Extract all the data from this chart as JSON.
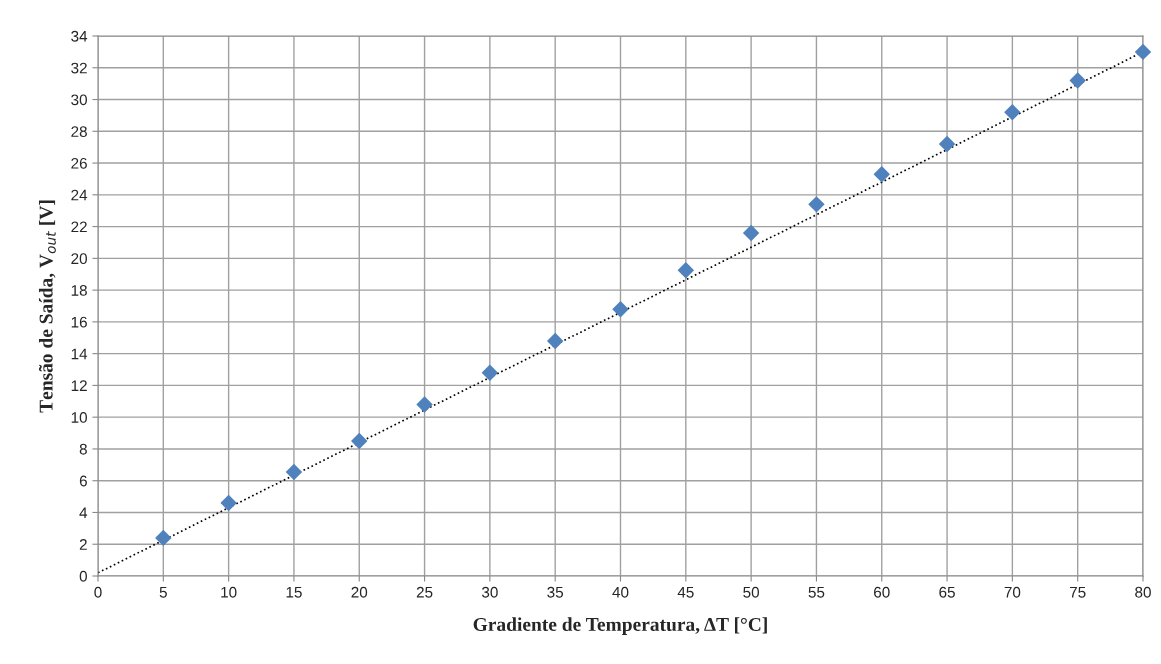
{
  "chart_data": {
    "type": "scatter",
    "xlabel": "Gradiente de Temperatura, ΔT [°C]",
    "ylabel": "Tensão de Saída, V$_{out}$ [V]",
    "x": [
      5,
      10,
      15,
      20,
      25,
      30,
      35,
      40,
      45,
      50,
      55,
      60,
      65,
      70,
      75,
      80
    ],
    "series": [
      {
        "color": "#4f81bd",
        "marker": "diamond",
        "values": [
          2.4,
          4.6,
          6.55,
          8.5,
          10.8,
          12.8,
          14.8,
          16.8,
          19.25,
          21.6,
          23.4,
          25.3,
          27.2,
          29.2,
          31.2,
          33.0
        ]
      },
      {
        "type": "line",
        "color": "#000000",
        "line_style": "dotted",
        "marker": "none",
        "x": [
          0,
          80
        ],
        "values": [
          0.2,
          33.0
        ]
      }
    ],
    "xlim": [
      0,
      80
    ],
    "xticks": [
      0,
      5,
      10,
      15,
      20,
      25,
      30,
      35,
      40,
      45,
      50,
      55,
      60,
      65,
      70,
      75,
      80
    ],
    "ylim": [
      0,
      34
    ],
    "yticks": [
      0,
      2,
      4,
      6,
      8,
      10,
      12,
      14,
      16,
      18,
      20,
      22,
      24,
      26,
      28,
      30,
      32,
      34
    ],
    "grid": true,
    "legend": false
  }
}
